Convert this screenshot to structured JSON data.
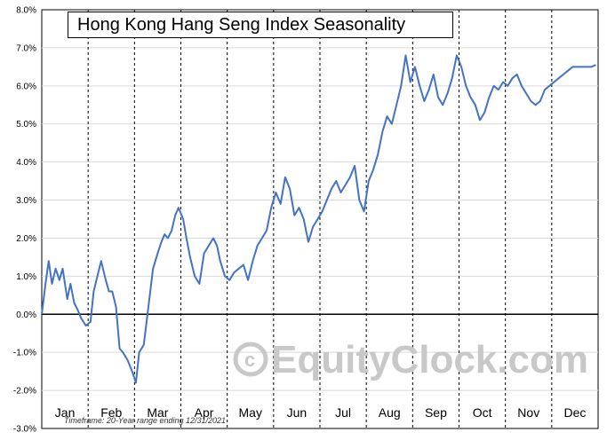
{
  "chart_data": {
    "type": "line",
    "title": "Hong Kong Hang Seng Index Seasonality",
    "ylim": [
      -3.0,
      8.0
    ],
    "y_ticks": [
      "8.0%",
      "7.0%",
      "6.0%",
      "5.0%",
      "4.0%",
      "3.0%",
      "2.0%",
      "1.0%",
      "0.0%",
      "-1.0%",
      "-2.0%",
      "-3.0%"
    ],
    "categories": [
      "Jan",
      "Feb",
      "Mar",
      "Apr",
      "May",
      "Jun",
      "Jul",
      "Aug",
      "Sep",
      "Oct",
      "Nov",
      "Dec"
    ],
    "grid": true,
    "series": [
      {
        "color": "#4472c4",
        "x": [
          0.0,
          0.08,
          0.15,
          0.22,
          0.3,
          0.38,
          0.45,
          0.55,
          0.62,
          0.7,
          0.78,
          0.85,
          0.95,
          1.05,
          1.12,
          1.2,
          1.28,
          1.38,
          1.45,
          1.52,
          1.6,
          1.68,
          1.75,
          1.85,
          1.95,
          2.03,
          2.1,
          2.2,
          2.3,
          2.4,
          2.5,
          2.58,
          2.65,
          2.72,
          2.8,
          2.88,
          2.95,
          3.05,
          3.12,
          3.2,
          3.3,
          3.4,
          3.5,
          3.6,
          3.7,
          3.78,
          3.85,
          3.95,
          4.05,
          4.15,
          4.25,
          4.35,
          4.45,
          4.55,
          4.65,
          4.75,
          4.85,
          4.95,
          5.05,
          5.15,
          5.25,
          5.35,
          5.45,
          5.55,
          5.65,
          5.75,
          5.85,
          5.95,
          6.05,
          6.15,
          6.25,
          6.35,
          6.45,
          6.55,
          6.65,
          6.75,
          6.85,
          6.95,
          7.05,
          7.15,
          7.25,
          7.35,
          7.45,
          7.55,
          7.65,
          7.75,
          7.85,
          7.95,
          8.05,
          8.15,
          8.25,
          8.35,
          8.45,
          8.55,
          8.65,
          8.75,
          8.85,
          8.95,
          9.05,
          9.15,
          9.25,
          9.35,
          9.45,
          9.55,
          9.65,
          9.75,
          9.85,
          9.95,
          10.05,
          10.15,
          10.25,
          10.35,
          10.45,
          10.55,
          10.65,
          10.75,
          10.85,
          10.95,
          11.05,
          11.15,
          11.25,
          11.35,
          11.45,
          11.55,
          11.65,
          11.75,
          11.85,
          11.95
        ],
        "values": [
          0.0,
          0.8,
          1.4,
          0.8,
          1.2,
          0.9,
          1.2,
          0.4,
          0.8,
          0.3,
          0.1,
          -0.1,
          -0.3,
          -0.2,
          0.6,
          1.0,
          1.4,
          0.9,
          0.6,
          0.6,
          0.2,
          -0.9,
          -1.0,
          -1.2,
          -1.5,
          -1.8,
          -1.0,
          -0.8,
          0.2,
          1.2,
          1.6,
          1.9,
          2.1,
          2.0,
          2.2,
          2.6,
          2.8,
          2.5,
          2.0,
          1.5,
          1.0,
          0.8,
          1.6,
          1.8,
          2.0,
          1.8,
          1.4,
          1.0,
          0.9,
          1.1,
          1.2,
          1.3,
          0.9,
          1.4,
          1.8,
          2.0,
          2.2,
          2.8,
          3.2,
          2.9,
          3.6,
          3.3,
          2.6,
          2.8,
          2.5,
          1.9,
          2.3,
          2.5,
          2.7,
          3.0,
          3.3,
          3.5,
          3.2,
          3.4,
          3.6,
          3.9,
          3.0,
          2.7,
          3.5,
          3.8,
          4.2,
          4.8,
          5.2,
          5.0,
          5.5,
          6.0,
          6.8,
          6.1,
          6.5,
          6.0,
          5.6,
          5.9,
          6.3,
          5.7,
          5.5,
          5.8,
          6.2,
          6.8,
          6.5,
          6.0,
          5.7,
          5.5,
          5.1,
          5.3,
          5.7,
          6.0,
          5.9,
          6.1,
          6.0,
          6.2,
          6.3,
          6.0,
          5.8,
          5.6,
          5.5,
          5.6,
          5.9,
          6.0,
          6.1,
          6.2,
          6.3,
          6.4,
          6.5,
          6.5,
          6.5,
          6.5,
          6.5,
          6.55
        ]
      }
    ]
  },
  "watermark": "EquityClock.com",
  "footnote": "Timeframe: 20-Year range ending 12/31/2021"
}
